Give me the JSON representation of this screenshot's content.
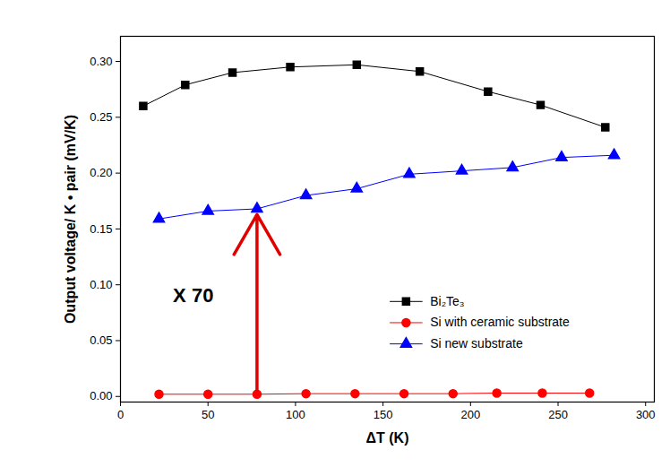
{
  "chart_data": {
    "type": "line",
    "x_label": "ΔT (K)",
    "y_label": "Output voltage/ K • pair (mV/K)",
    "xlim": [
      0,
      305
    ],
    "xticks": [
      0,
      50,
      100,
      150,
      200,
      250,
      300
    ],
    "ylim": [
      -0.005,
      0.3225
    ],
    "yticks": [
      {
        "value": 0,
        "label": "0.00"
      },
      {
        "value": 0.05,
        "label": "0.05"
      },
      {
        "value": 0.1,
        "label": "0.10"
      },
      {
        "value": 0.15,
        "label": "0.15"
      },
      {
        "value": 0.2,
        "label": "0.20"
      },
      {
        "value": 0.25,
        "label": "0.25"
      },
      {
        "value": 0.3,
        "label": "0.30"
      }
    ],
    "grid": false,
    "legend": "lower right",
    "series": [
      {
        "name": "Bi₂Te₃",
        "color": "#000000",
        "marker": "square",
        "x": [
          13,
          37,
          64,
          97,
          135,
          171,
          210,
          240,
          277
        ],
        "values": [
          0.26,
          0.279,
          0.29,
          0.295,
          0.297,
          0.291,
          0.273,
          0.261,
          0.241
        ]
      },
      {
        "name": "Si with ceramic substrate",
        "color": "#ff0000",
        "marker": "circle",
        "x": [
          22,
          50,
          78,
          106,
          134,
          162,
          190,
          215,
          241,
          268
        ],
        "values": [
          0.002,
          0.002,
          0.002,
          0.0025,
          0.0025,
          0.0025,
          0.0025,
          0.003,
          0.003,
          0.003
        ]
      },
      {
        "name": "Si new substrate",
        "color": "#0000ff",
        "marker": "triangle",
        "x": [
          22,
          50,
          78,
          106,
          135,
          165,
          195,
          224,
          252,
          282
        ],
        "values": [
          0.159,
          0.166,
          0.168,
          0.18,
          0.186,
          0.199,
          0.202,
          0.205,
          0.214,
          0.216
        ]
      }
    ],
    "annotations": [
      {
        "text": "X 70",
        "x": 30,
        "y": 0.09
      }
    ]
  }
}
